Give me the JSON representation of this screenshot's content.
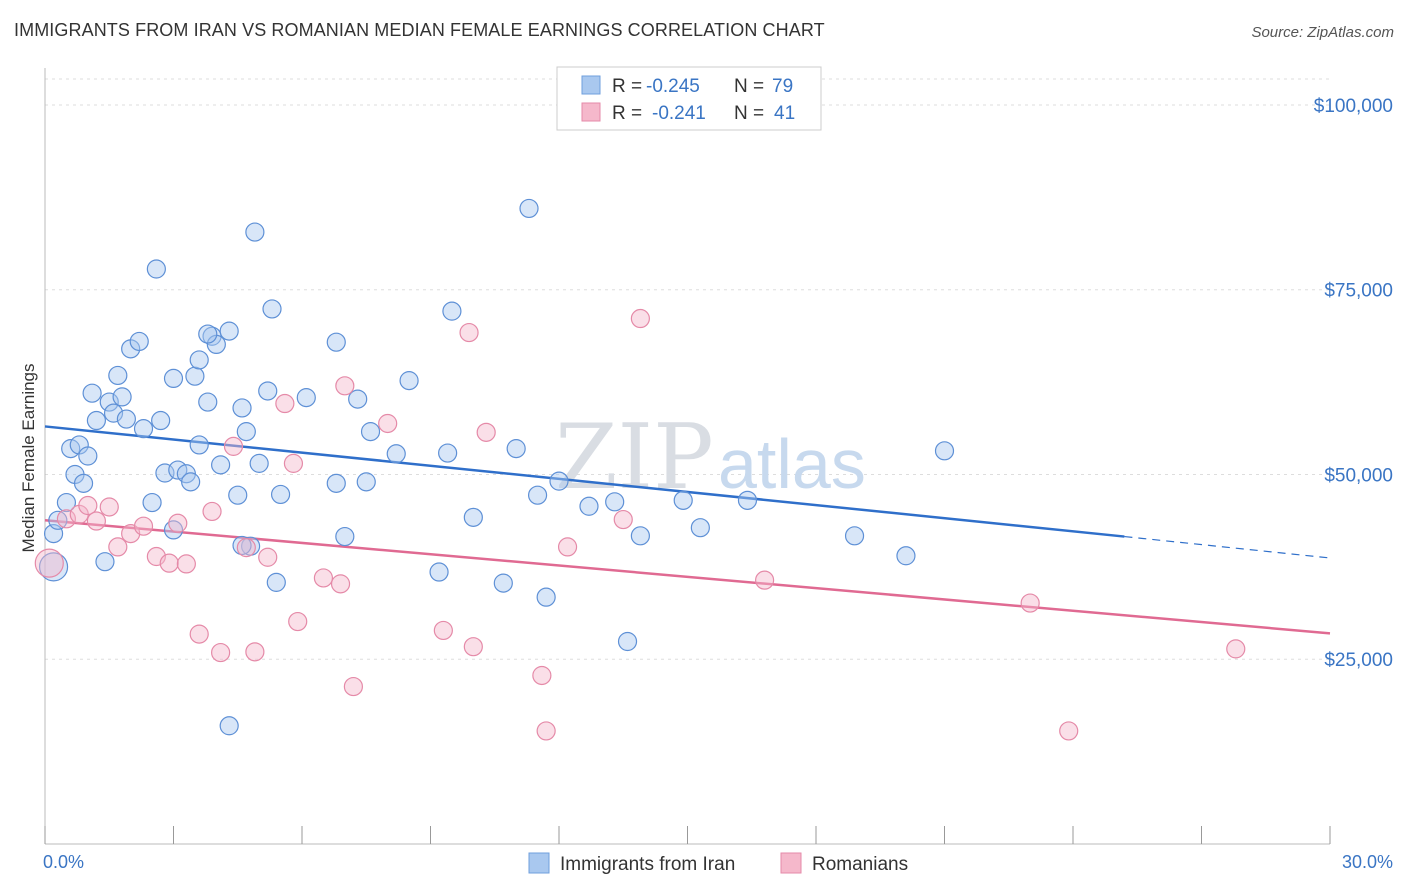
{
  "title": "IMMIGRANTS FROM IRAN VS ROMANIAN MEDIAN FEMALE EARNINGS CORRELATION CHART",
  "source": "Source: ZipAtlas.com",
  "watermark": {
    "zip": "ZIP",
    "atlas": "atlas"
  },
  "colors": {
    "blue": "#3a75c4",
    "blue_fill": "#a9c8ef",
    "pink": "#e06a92",
    "pink_fill": "#f5b8cb",
    "grid": "#dddddd"
  },
  "legend": {
    "rows": [
      {
        "r_label": "R =",
        "r_value": "-0.245",
        "n_label": "N =",
        "n_value": "79"
      },
      {
        "r_label": "R =",
        "r_value": "-0.241",
        "n_label": "N =",
        "n_value": "41"
      }
    ]
  },
  "chart_data": {
    "type": "scatter",
    "ylabel": "Median Female Earnings",
    "xlabel": "",
    "xlim": [
      0,
      30
    ],
    "ylim": [
      0,
      105000
    ],
    "x_tick_labels": [
      "0.0%",
      "30.0%"
    ],
    "y_tick_values": [
      25000,
      50000,
      75000,
      100000
    ],
    "y_tick_labels": [
      "$25,000",
      "$50,000",
      "$75,000",
      "$100,000"
    ],
    "grid": true,
    "legend_position": "top-center",
    "series": [
      {
        "name": "Immigrants from Iran",
        "color": "#3a75c4",
        "trend": {
          "x": [
            0,
            25.2
          ],
          "y": [
            56500,
            41600
          ],
          "dashed_to": [
            30,
            38700
          ]
        },
        "points": [
          [
            0.2,
            37500
          ],
          [
            0.2,
            42000
          ],
          [
            0.3,
            43800
          ],
          [
            0.5,
            46200
          ],
          [
            0.6,
            53500
          ],
          [
            0.7,
            50000
          ],
          [
            0.8,
            54000
          ],
          [
            0.9,
            48800
          ],
          [
            1.0,
            52500
          ],
          [
            1.1,
            61000
          ],
          [
            1.2,
            57300
          ],
          [
            1.4,
            38200
          ],
          [
            1.5,
            59800
          ],
          [
            1.6,
            58300
          ],
          [
            1.7,
            63400
          ],
          [
            1.8,
            60500
          ],
          [
            1.9,
            57500
          ],
          [
            2.0,
            67000
          ],
          [
            2.2,
            68000
          ],
          [
            2.3,
            56200
          ],
          [
            2.5,
            46200
          ],
          [
            2.6,
            77800
          ],
          [
            2.7,
            57300
          ],
          [
            2.8,
            50200
          ],
          [
            3.0,
            42500
          ],
          [
            3.0,
            63000
          ],
          [
            3.1,
            50600
          ],
          [
            3.3,
            50100
          ],
          [
            3.4,
            49000
          ],
          [
            3.5,
            63300
          ],
          [
            3.6,
            54000
          ],
          [
            3.6,
            65500
          ],
          [
            3.8,
            59800
          ],
          [
            3.9,
            68700
          ],
          [
            4.0,
            67600
          ],
          [
            4.1,
            51300
          ],
          [
            4.3,
            69400
          ],
          [
            4.5,
            47200
          ],
          [
            4.6,
            59000
          ],
          [
            4.7,
            55800
          ],
          [
            4.8,
            40300
          ],
          [
            4.9,
            82800
          ],
          [
            5.0,
            51500
          ],
          [
            5.2,
            61300
          ],
          [
            5.3,
            72400
          ],
          [
            5.4,
            35400
          ],
          [
            5.5,
            47300
          ],
          [
            6.1,
            60400
          ],
          [
            6.8,
            67900
          ],
          [
            6.8,
            48800
          ],
          [
            7.0,
            41600
          ],
          [
            7.3,
            60200
          ],
          [
            7.5,
            49000
          ],
          [
            7.6,
            55800
          ],
          [
            8.2,
            52800
          ],
          [
            8.5,
            62700
          ],
          [
            9.2,
            36800
          ],
          [
            9.4,
            52900
          ],
          [
            9.5,
            72100
          ],
          [
            10.0,
            44200
          ],
          [
            10.7,
            35300
          ],
          [
            11.0,
            53500
          ],
          [
            11.3,
            86000
          ],
          [
            11.5,
            47200
          ],
          [
            11.7,
            33400
          ],
          [
            12.0,
            49100
          ],
          [
            12.7,
            45700
          ],
          [
            13.3,
            46300
          ],
          [
            13.6,
            27400
          ],
          [
            13.9,
            41700
          ],
          [
            14.9,
            46500
          ],
          [
            15.3,
            42800
          ],
          [
            16.4,
            46500
          ],
          [
            18.9,
            41700
          ],
          [
            20.1,
            39000
          ],
          [
            21.0,
            53200
          ],
          [
            4.3,
            16000
          ],
          [
            4.6,
            40400
          ],
          [
            3.8,
            69000
          ]
        ]
      },
      {
        "name": "Romanians",
        "color": "#e06a92",
        "trend": {
          "x": [
            0,
            30
          ],
          "y": [
            43800,
            28500
          ]
        },
        "points": [
          [
            0.1,
            38000
          ],
          [
            0.5,
            44000
          ],
          [
            0.8,
            44600
          ],
          [
            1.0,
            45800
          ],
          [
            1.2,
            43700
          ],
          [
            1.5,
            45600
          ],
          [
            1.7,
            40200
          ],
          [
            2.0,
            42000
          ],
          [
            2.3,
            43000
          ],
          [
            2.6,
            38900
          ],
          [
            2.9,
            38000
          ],
          [
            3.1,
            43400
          ],
          [
            3.3,
            37900
          ],
          [
            3.6,
            28400
          ],
          [
            3.9,
            45000
          ],
          [
            4.1,
            25900
          ],
          [
            4.4,
            53800
          ],
          [
            4.7,
            40100
          ],
          [
            4.9,
            26000
          ],
          [
            5.2,
            38800
          ],
          [
            5.6,
            59600
          ],
          [
            5.8,
            51500
          ],
          [
            5.9,
            30100
          ],
          [
            6.5,
            36000
          ],
          [
            6.9,
            35200
          ],
          [
            7.0,
            62000
          ],
          [
            7.2,
            21300
          ],
          [
            8.0,
            56900
          ],
          [
            9.3,
            28900
          ],
          [
            9.9,
            69200
          ],
          [
            10.0,
            26700
          ],
          [
            10.3,
            55700
          ],
          [
            11.6,
            22800
          ],
          [
            11.7,
            15300
          ],
          [
            12.2,
            40200
          ],
          [
            13.5,
            43900
          ],
          [
            13.9,
            71100
          ],
          [
            16.8,
            35700
          ],
          [
            23.0,
            32600
          ],
          [
            23.9,
            15300
          ],
          [
            27.8,
            26400
          ]
        ]
      }
    ]
  }
}
